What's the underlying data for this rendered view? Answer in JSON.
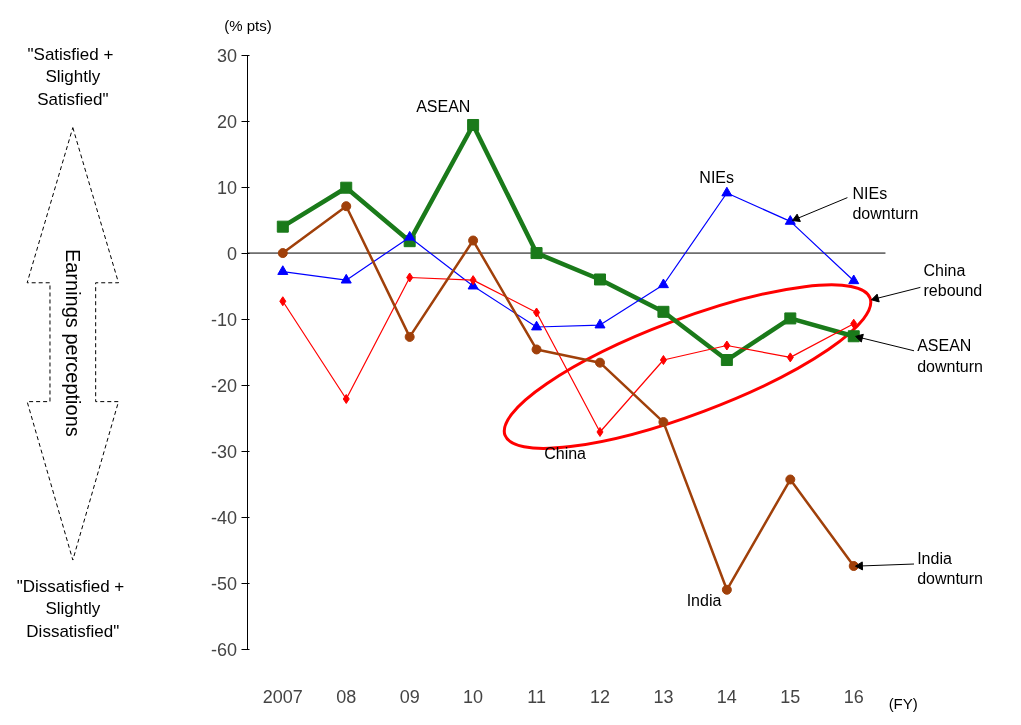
{
  "chart_data": {
    "type": "line",
    "categories": [
      "2007",
      "08",
      "09",
      "10",
      "11",
      "12",
      "13",
      "14",
      "15",
      "16"
    ],
    "series": [
      {
        "name": "ASEAN",
        "color": "#1a7a1a",
        "marker": "square",
        "values": [
          4,
          9.9,
          1.8,
          19.4,
          0,
          -4,
          -8.9,
          -16.2,
          -9.9,
          -12.6
        ]
      },
      {
        "name": "NIEs",
        "color": "#0000ff",
        "marker": "triangle",
        "values": [
          -2.8,
          -4.1,
          2.4,
          -5,
          -11.2,
          -10.9,
          -4.8,
          9.1,
          4.8,
          -4.2
        ]
      },
      {
        "name": "China",
        "color": "#ff0000",
        "marker": "diamond",
        "values": [
          -7.3,
          -22.1,
          -3.7,
          -4.1,
          -9,
          -27.1,
          -16.2,
          -14,
          -15.8,
          -10.7
        ]
      },
      {
        "name": "India",
        "color": "#a0400a",
        "marker": "circle",
        "values": [
          0,
          7.1,
          -12.7,
          1.9,
          -14.6,
          -16.6,
          -25.6,
          -51,
          -34.3,
          -47.4
        ]
      }
    ],
    "ylim": [
      -60,
      30
    ],
    "yticks": [
      -60,
      -50,
      -40,
      -30,
      -20,
      -10,
      0,
      10,
      20,
      30
    ],
    "ylabel": "(% pts)",
    "xlabel": "(FY)",
    "grid": false,
    "line_style": "solid",
    "ref_lines": [
      {
        "axis": "y",
        "value": 0,
        "color": "#000000"
      }
    ],
    "annotations": [
      "\"Satisfied  +\nSlightly\nSatisfied\"",
      "Earnings perceptions",
      "\"Dissatisfied  +\nSlightly\nDissatisfied\"",
      {
        "text": "NIEs\ndownturn",
        "x": "15",
        "y": 4.8
      },
      "China\nrebound",
      {
        "text": "ASEAN\ndownturn",
        "x": "16",
        "y": -12.6
      },
      {
        "text": "India\ndownturn",
        "x": "16",
        "y": -47.4
      }
    ]
  }
}
